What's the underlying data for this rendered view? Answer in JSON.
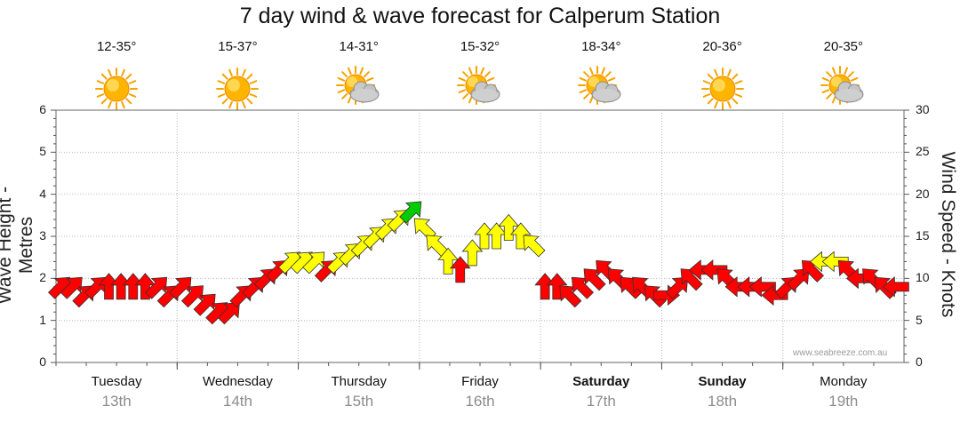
{
  "title": "7 day wind & wave forecast for Calperum Station",
  "watermark": "www.seabreeze.com.au",
  "days": [
    {
      "name": "Tuesday",
      "date": "13th",
      "temp": "12-35°",
      "icon": "sunny-icon",
      "weekend": false
    },
    {
      "name": "Wednesday",
      "date": "14th",
      "temp": "15-37°",
      "icon": "sunny-icon",
      "weekend": false
    },
    {
      "name": "Thursday",
      "date": "15th",
      "temp": "14-31°",
      "icon": "partly-cloudy-icon",
      "weekend": false
    },
    {
      "name": "Friday",
      "date": "16th",
      "temp": "15-32°",
      "icon": "partly-cloudy-icon",
      "weekend": false
    },
    {
      "name": "Saturday",
      "date": "17th",
      "temp": "18-34°",
      "icon": "partly-cloudy-icon",
      "weekend": true
    },
    {
      "name": "Sunday",
      "date": "18th",
      "temp": "20-36°",
      "icon": "sunny-icon",
      "weekend": true
    },
    {
      "name": "Monday",
      "date": "19th",
      "temp": "20-35°",
      "icon": "partly-cloudy-icon",
      "weekend": false
    }
  ],
  "chart_data": {
    "type": "scatter",
    "title": "7 day wind & wave forecast for Calperum Station",
    "xlabel": "",
    "ylabel": "Wave Height - Metres",
    "y2label": "Wind Speed - Knots",
    "ylim": [
      0,
      6
    ],
    "y2lim": [
      0,
      30
    ],
    "yticks": [
      "0",
      "1",
      "2",
      "3",
      "4",
      "5",
      "6"
    ],
    "y2ticks": [
      "0",
      "5",
      "10",
      "15",
      "20",
      "25",
      "30"
    ],
    "grid": true,
    "colors": {
      "calm": "#ff0000",
      "moderate": "#ffff00",
      "strong": "#00cc00",
      "outline": "#333333",
      "grid": "#b8b8b8"
    },
    "series": [
      {
        "unit": "knots",
        "marker": "arrow-direction",
        "x_day": [
          0.0,
          0.1,
          0.2,
          0.3,
          0.4,
          0.5,
          0.6,
          0.7,
          0.8,
          0.9,
          1.0,
          1.1,
          1.2,
          1.3,
          1.4,
          1.5,
          1.6,
          1.7,
          1.8,
          1.9,
          2.0,
          2.1,
          2.2,
          2.3,
          2.4,
          2.5,
          2.6,
          2.7,
          2.8,
          2.9,
          3.0,
          3.1,
          3.2,
          3.3,
          3.4,
          3.5,
          3.6,
          3.7,
          3.8,
          3.9,
          4.0,
          4.1,
          4.2,
          4.3,
          4.4,
          4.5,
          4.6,
          4.7,
          4.8,
          4.9,
          5.0,
          5.1,
          5.2,
          5.3,
          5.4,
          5.5,
          5.6,
          5.7,
          5.8,
          5.9,
          6.0,
          6.1,
          6.2,
          6.3,
          6.4,
          6.5,
          6.6,
          6.7,
          6.8,
          6.9
        ],
        "speed": [
          9,
          9,
          8,
          9,
          9,
          9,
          9,
          9,
          9,
          8,
          9,
          8,
          7,
          6,
          6,
          8,
          9,
          10,
          11,
          12,
          12,
          12,
          11,
          12,
          13,
          14,
          15,
          16,
          17,
          18,
          16,
          14,
          12,
          11,
          13,
          15,
          15,
          16,
          15,
          14,
          9,
          9,
          8,
          9,
          10,
          11,
          10,
          9,
          9,
          8,
          8,
          9,
          10,
          11,
          11,
          10,
          9,
          9,
          9,
          8,
          9,
          10,
          11,
          12,
          12,
          11,
          10,
          10,
          9,
          9
        ],
        "direction": [
          "NE",
          "NE",
          "NE",
          "NE",
          "N",
          "N",
          "N",
          "N",
          "NE",
          "NE",
          "NE",
          "NE",
          "NE",
          "NE",
          "NE",
          "NE",
          "NE",
          "NE",
          "NE",
          "NE",
          "NE",
          "NE",
          "NE",
          "NE",
          "NE",
          "NE",
          "NE",
          "NE",
          "NE",
          "NE",
          "NW",
          "NW",
          "N",
          "N",
          "N",
          "N",
          "N",
          "N",
          "N",
          "NW",
          "N",
          "N",
          "NW",
          "NW",
          "NW",
          "NW",
          "NW",
          "NW",
          "NW",
          "NW",
          "E",
          "NE",
          "NW",
          "W",
          "W",
          "NW",
          "W",
          "W",
          "W",
          "W",
          "NE",
          "NE",
          "NW",
          "W",
          "W",
          "NW",
          "W",
          "NW",
          "NW",
          "W"
        ]
      }
    ]
  }
}
